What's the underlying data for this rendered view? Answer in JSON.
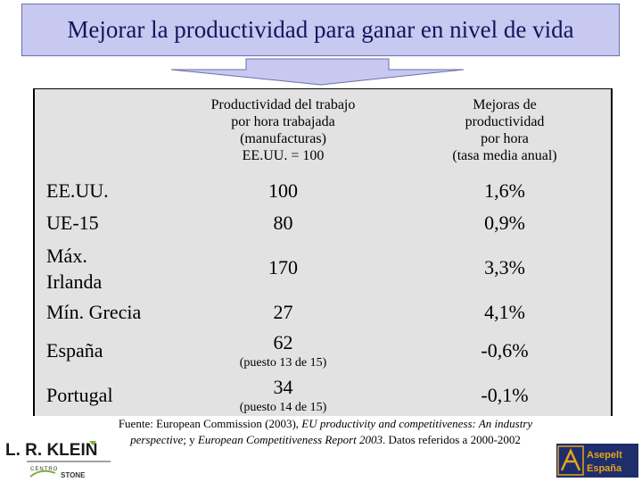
{
  "title": "Mejorar la productividad para ganar en nivel de vida",
  "table": {
    "headers": {
      "col1": [
        "Productividad del trabajo",
        "por hora trabajada",
        "(manufacturas)",
        "EE.UU. = 100"
      ],
      "col2": [
        "Mejoras de",
        "productividad",
        "por hora",
        "(tasa media anual)"
      ]
    },
    "rows": [
      {
        "label": "EE.UU.",
        "productivity": "100",
        "note": "",
        "improvement": "1,6%"
      },
      {
        "label": "UE-15",
        "productivity": "80",
        "note": "",
        "improvement": "0,9%"
      },
      {
        "label_lines": [
          "Máx.",
          "Irlanda"
        ],
        "productivity": "170",
        "note": "",
        "improvement": "3,3%"
      },
      {
        "label": "Mín. Grecia",
        "productivity": "27",
        "note": "",
        "improvement": "4,1%"
      },
      {
        "label": "España",
        "productivity": "62",
        "note": "(puesto 13 de 15)",
        "improvement": "-0,6%"
      },
      {
        "label": "Portugal",
        "productivity": "34",
        "note": "(puesto 14 de 15)",
        "improvement": "-0,1%"
      }
    ]
  },
  "source": {
    "prefix": "Fuente: European Commission (2003),",
    "italic1": "EU productivity and competitiveness: An industry perspective",
    "middle": "; y",
    "italic2": "European Competitiveness Report 2003",
    "suffix": ". Datos referidos a 2000-2002"
  },
  "logos": {
    "left": {
      "name": "L. R. KLEIN",
      "sub1": "CENTRO",
      "sub2": "STONE"
    },
    "right": {
      "line1": "Asepelt",
      "line2": "España"
    }
  },
  "colors": {
    "title_bg": "#c7c9f1",
    "title_text": "#14145c",
    "table_bg": "#e2e2e2",
    "funnel": "#c7c9f1"
  }
}
